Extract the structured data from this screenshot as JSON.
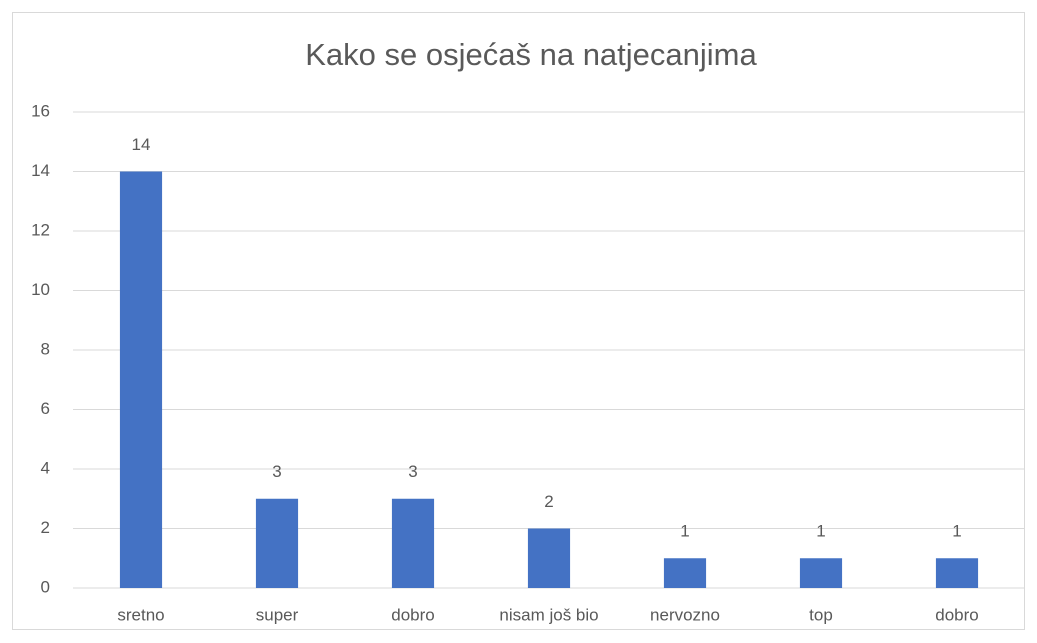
{
  "chart_data": {
    "type": "bar",
    "title": "Kako se osjećaš na natjecanjima",
    "categories": [
      "sretno",
      "super",
      "dobro",
      "nisam još bio",
      "nervozno",
      "top",
      "dobro"
    ],
    "values": [
      14,
      3,
      3,
      2,
      1,
      1,
      1
    ],
    "color": "#4472c4",
    "ylim": [
      0,
      16
    ],
    "yticks": [
      0,
      2,
      4,
      6,
      8,
      10,
      12,
      14,
      16
    ],
    "grid": true,
    "data_labels": true
  }
}
